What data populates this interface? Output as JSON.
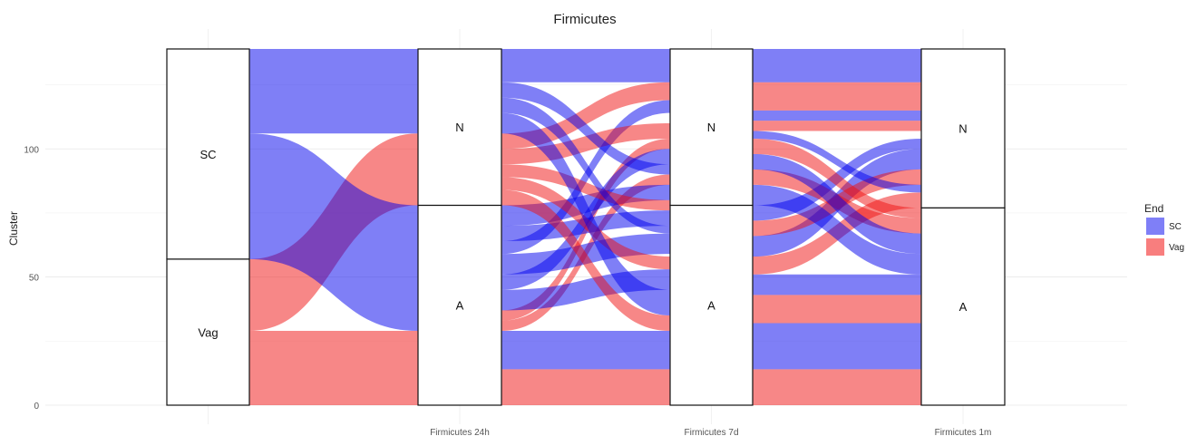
{
  "chart_data": {
    "type": "alluvial",
    "title": "Firmicutes",
    "ylabel": "Cluster",
    "ylim": [
      0,
      140
    ],
    "yticks": [
      0,
      50,
      100
    ],
    "axes": [
      {
        "label": "",
        "strata": [
          {
            "name": "Vag",
            "from": 0,
            "to": 57
          },
          {
            "name": "SC",
            "from": 57,
            "to": 139
          }
        ]
      },
      {
        "label": "Firmicutes 24h",
        "strata": [
          {
            "name": "A",
            "from": 0,
            "to": 78
          },
          {
            "name": "N",
            "from": 78,
            "to": 139
          }
        ]
      },
      {
        "label": "Firmicutes 7d",
        "strata": [
          {
            "name": "A",
            "from": 0,
            "to": 78
          },
          {
            "name": "N",
            "from": 78,
            "to": 139
          }
        ]
      },
      {
        "label": "Firmicutes 1m",
        "strata": [
          {
            "name": "A",
            "from": 0,
            "to": 77
          },
          {
            "name": "N",
            "from": 77,
            "to": 139
          }
        ]
      }
    ],
    "flows": [
      {
        "between": [
          0,
          1
        ],
        "fill": "Vag",
        "left": [
          0,
          29
        ],
        "right": [
          0,
          29
        ]
      },
      {
        "between": [
          0,
          1
        ],
        "fill": "Vag",
        "left": [
          29,
          57
        ],
        "right": [
          78,
          106
        ]
      },
      {
        "between": [
          0,
          1
        ],
        "fill": "SC",
        "left": [
          57,
          106
        ],
        "right": [
          29,
          78
        ]
      },
      {
        "between": [
          0,
          1
        ],
        "fill": "SC",
        "left": [
          106,
          139
        ],
        "right": [
          106,
          139
        ]
      },
      {
        "between": [
          1,
          2
        ],
        "fill": "Vag",
        "left": [
          0,
          14
        ],
        "right": [
          0,
          14
        ]
      },
      {
        "between": [
          1,
          2
        ],
        "fill": "SC",
        "left": [
          14,
          29
        ],
        "right": [
          14,
          29
        ]
      },
      {
        "between": [
          1,
          2
        ],
        "fill": "Vag",
        "left": [
          29,
          33
        ],
        "right": [
          86,
          90
        ]
      },
      {
        "between": [
          1,
          2
        ],
        "fill": "Vag",
        "left": [
          33,
          37
        ],
        "right": [
          100,
          104
        ]
      },
      {
        "between": [
          1,
          2
        ],
        "fill": "SC",
        "left": [
          37,
          45
        ],
        "right": [
          45,
          53
        ]
      },
      {
        "between": [
          1,
          2
        ],
        "fill": "SC",
        "left": [
          45,
          51
        ],
        "right": [
          94,
          100
        ]
      },
      {
        "between": [
          1,
          2
        ],
        "fill": "SC",
        "left": [
          51,
          59
        ],
        "right": [
          59,
          67
        ]
      },
      {
        "between": [
          1,
          2
        ],
        "fill": "SC",
        "left": [
          59,
          64
        ],
        "right": [
          114,
          119
        ]
      },
      {
        "between": [
          1,
          2
        ],
        "fill": "SC",
        "left": [
          64,
          70
        ],
        "right": [
          70,
          76
        ]
      },
      {
        "between": [
          1,
          2
        ],
        "fill": "SC",
        "left": [
          70,
          78
        ],
        "right": [
          80,
          86
        ]
      },
      {
        "between": [
          1,
          2
        ],
        "fill": "Vag",
        "left": [
          78,
          84
        ],
        "right": [
          29,
          35
        ]
      },
      {
        "between": [
          1,
          2
        ],
        "fill": "Vag",
        "left": [
          84,
          89
        ],
        "right": [
          53,
          58
        ]
      },
      {
        "between": [
          1,
          2
        ],
        "fill": "Vag",
        "left": [
          89,
          94
        ],
        "right": [
          76,
          80
        ]
      },
      {
        "between": [
          1,
          2
        ],
        "fill": "Vag",
        "left": [
          94,
          100
        ],
        "right": [
          104,
          110
        ]
      },
      {
        "between": [
          1,
          2
        ],
        "fill": "Vag",
        "left": [
          100,
          106
        ],
        "right": [
          119,
          126
        ]
      },
      {
        "between": [
          1,
          2
        ],
        "fill": "SC",
        "left": [
          106,
          114
        ],
        "right": [
          35,
          45
        ]
      },
      {
        "between": [
          1,
          2
        ],
        "fill": "SC",
        "left": [
          114,
          120
        ],
        "right": [
          67,
          70
        ]
      },
      {
        "between": [
          1,
          2
        ],
        "fill": "SC",
        "left": [
          120,
          126
        ],
        "right": [
          90,
          94
        ]
      },
      {
        "between": [
          1,
          2
        ],
        "fill": "SC",
        "left": [
          126,
          139
        ],
        "right": [
          126,
          139
        ]
      },
      {
        "between": [
          2,
          3
        ],
        "fill": "Vag",
        "left": [
          0,
          14
        ],
        "right": [
          0,
          14
        ]
      },
      {
        "between": [
          2,
          3
        ],
        "fill": "SC",
        "left": [
          14,
          32
        ],
        "right": [
          14,
          32
        ]
      },
      {
        "between": [
          2,
          3
        ],
        "fill": "Vag",
        "left": [
          32,
          43
        ],
        "right": [
          32,
          43
        ]
      },
      {
        "between": [
          2,
          3
        ],
        "fill": "SC",
        "left": [
          43,
          51
        ],
        "right": [
          43,
          51
        ]
      },
      {
        "between": [
          2,
          3
        ],
        "fill": "Vag",
        "left": [
          51,
          58
        ],
        "right": [
          77,
          83
        ]
      },
      {
        "between": [
          2,
          3
        ],
        "fill": "SC",
        "left": [
          58,
          66
        ],
        "right": [
          92,
          100
        ]
      },
      {
        "between": [
          2,
          3
        ],
        "fill": "Vag",
        "left": [
          66,
          72
        ],
        "right": [
          86,
          92
        ]
      },
      {
        "between": [
          2,
          3
        ],
        "fill": "SC",
        "left": [
          72,
          78
        ],
        "right": [
          100,
          104
        ]
      },
      {
        "between": [
          2,
          3
        ],
        "fill": "SC",
        "left": [
          78,
          86
        ],
        "right": [
          51,
          59
        ]
      },
      {
        "between": [
          2,
          3
        ],
        "fill": "Vag",
        "left": [
          86,
          92
        ],
        "right": [
          67,
          73
        ]
      },
      {
        "between": [
          2,
          3
        ],
        "fill": "SC",
        "left": [
          92,
          98
        ],
        "right": [
          59,
          67
        ]
      },
      {
        "between": [
          2,
          3
        ],
        "fill": "Vag",
        "left": [
          98,
          104
        ],
        "right": [
          73,
          77
        ]
      },
      {
        "between": [
          2,
          3
        ],
        "fill": "SC",
        "left": [
          104,
          107
        ],
        "right": [
          83,
          86
        ]
      },
      {
        "between": [
          2,
          3
        ],
        "fill": "Vag",
        "left": [
          107,
          111
        ],
        "right": [
          107,
          111
        ]
      },
      {
        "between": [
          2,
          3
        ],
        "fill": "SC",
        "left": [
          111,
          115
        ],
        "right": [
          111,
          115
        ]
      },
      {
        "between": [
          2,
          3
        ],
        "fill": "Vag",
        "left": [
          115,
          126
        ],
        "right": [
          115,
          126
        ]
      },
      {
        "between": [
          2,
          3
        ],
        "fill": "SC",
        "left": [
          126,
          139
        ],
        "right": [
          126,
          139
        ]
      }
    ],
    "legend": {
      "title": "End",
      "position": "right",
      "entries": [
        {
          "name": "SC",
          "color": "#7f7ff7"
        },
        {
          "name": "Vag",
          "color": "#f87e7e"
        }
      ]
    },
    "colors": {
      "SC": "#0000ee",
      "Vag": "#f01010"
    },
    "grid": true
  }
}
